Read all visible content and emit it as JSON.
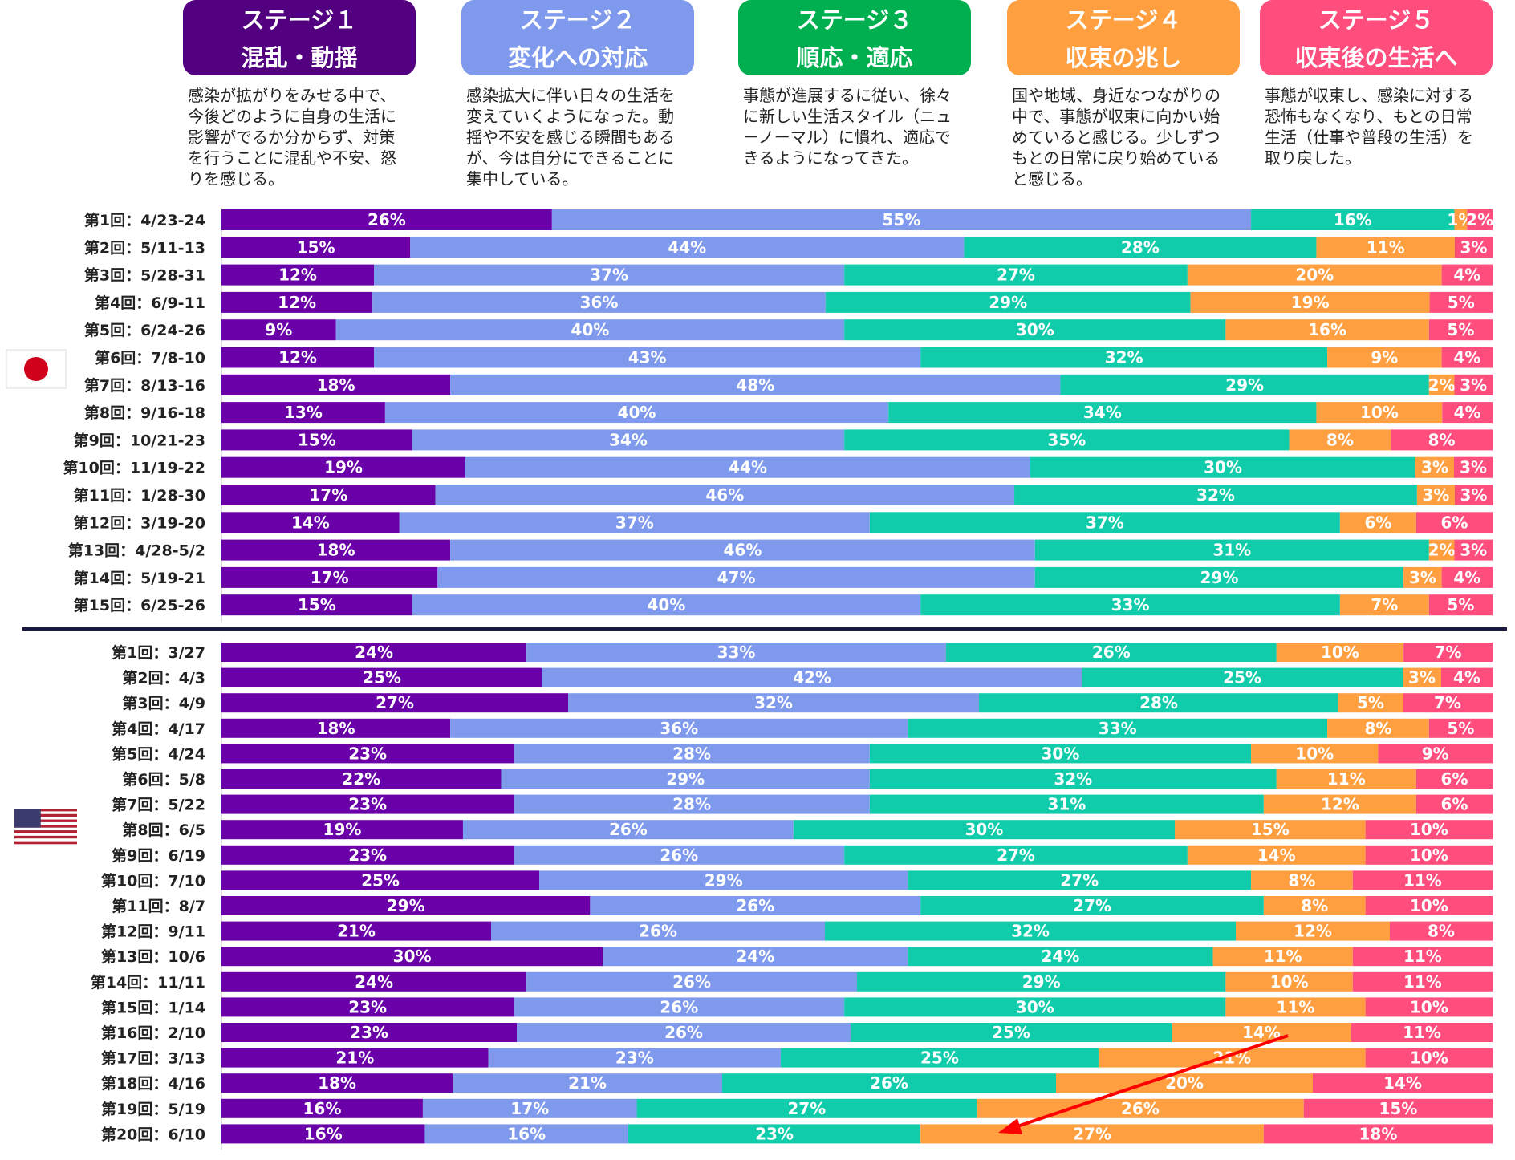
{
  "colors": [
    "#6a00a8",
    "#7f9aec",
    "#11ccaa",
    "#ff9f40",
    "#ff4d7d"
  ],
  "stages": [
    {
      "title": "ステージ１",
      "subtitle": "混乱・動揺",
      "color": "#520080",
      "desc": "感染が拡がりをみせる中で、今後どのように自身の生活に影響がでるか分からず、対策を行うことに混乱や不安、怒りを感じる。"
    },
    {
      "title": "ステージ２",
      "subtitle": "変化への対応",
      "color": "#7f9aec",
      "desc": "感染拡大に伴い日々の生活を変えていくようになった。動揺や不安を感じる瞬間もあるが、今は自分にできることに集中している。"
    },
    {
      "title": "ステージ３",
      "subtitle": "順応・適応",
      "color": "#00b050",
      "desc": "事態が進展するに従い、徐々に新しい生活スタイル（ニューノーマル）に慣れ、適応できるようになってきた。"
    },
    {
      "title": "ステージ４",
      "subtitle": "収束の兆し",
      "color": "#ff9f40",
      "desc": "国や地域、身近なつながりの中で、事態が収束に向かい始めていると感じる。少しずつもとの日常に戻り始めていると感じる。"
    },
    {
      "title": "ステージ５",
      "subtitle": "収束後の生活へ",
      "color": "#ff4d7d",
      "desc": "事態が収束し、感染に対する恐怖もなくなり、もとの日常生活（仕事や普段の生活）を取り戻した。"
    }
  ],
  "chart_data": [
    {
      "type": "bar",
      "stacked": true,
      "orientation": "horizontal",
      "percent_stacked": true,
      "flag": "japan-flag",
      "categories": [
        "第1回：4/23-24",
        "第2回：5/11-13",
        "第3回：5/28-31",
        "第4回：6/9-11",
        "第5回：6/24-26",
        "第6回：7/8-10",
        "第7回：8/13-16",
        "第8回：9/16-18",
        "第9回：10/21-23",
        "第10回：11/19-22",
        "第11回：1/28-30",
        "第12回：3/19-20",
        "第13回：4/28-5/2",
        "第14回：5/19-21",
        "第15回：6/25-26"
      ],
      "series": [
        {
          "values": [
            26,
            15,
            12,
            12,
            9,
            12,
            18,
            13,
            15,
            19,
            17,
            14,
            18,
            17,
            15
          ]
        },
        {
          "values": [
            55,
            44,
            37,
            36,
            40,
            43,
            48,
            40,
            34,
            44,
            46,
            37,
            46,
            47,
            40
          ]
        },
        {
          "values": [
            16,
            28,
            27,
            29,
            30,
            32,
            29,
            34,
            35,
            30,
            32,
            37,
            31,
            29,
            33
          ]
        },
        {
          "values": [
            1,
            11,
            20,
            19,
            16,
            9,
            2,
            10,
            8,
            3,
            3,
            6,
            2,
            3,
            7
          ]
        },
        {
          "values": [
            2,
            3,
            4,
            5,
            5,
            4,
            3,
            4,
            8,
            3,
            3,
            6,
            3,
            4,
            5
          ]
        }
      ]
    },
    {
      "type": "bar",
      "stacked": true,
      "orientation": "horizontal",
      "percent_stacked": true,
      "flag": "usa-flag",
      "categories": [
        "第1回：3/27",
        "第2回：4/3",
        "第3回：4/9",
        "第4回：4/17",
        "第5回：4/24",
        "第6回：5/8",
        "第7回：5/22",
        "第8回：6/5",
        "第9回：6/19",
        "第10回：7/10",
        "第11回：8/7",
        "第12回：9/11",
        "第13回：10/6",
        "第14回：11/11",
        "第15回：1/14",
        "第16回：2/10",
        "第17回：3/13",
        "第18回：4/16",
        "第19回：5/19",
        "第20回：6/10"
      ],
      "series": [
        {
          "values": [
            24,
            25,
            27,
            18,
            23,
            22,
            23,
            19,
            23,
            25,
            29,
            21,
            30,
            24,
            23,
            23,
            21,
            18,
            16,
            16
          ]
        },
        {
          "values": [
            33,
            42,
            32,
            36,
            28,
            29,
            28,
            26,
            26,
            29,
            26,
            26,
            24,
            26,
            26,
            26,
            23,
            21,
            17,
            16
          ]
        },
        {
          "values": [
            26,
            25,
            28,
            33,
            30,
            32,
            31,
            30,
            27,
            27,
            27,
            32,
            24,
            29,
            30,
            25,
            25,
            26,
            27,
            23
          ]
        },
        {
          "values": [
            10,
            3,
            5,
            8,
            10,
            11,
            12,
            15,
            14,
            8,
            8,
            12,
            11,
            10,
            11,
            14,
            21,
            20,
            26,
            27
          ]
        },
        {
          "values": [
            7,
            4,
            7,
            5,
            9,
            6,
            6,
            10,
            10,
            11,
            10,
            8,
            11,
            11,
            10,
            11,
            10,
            14,
            15,
            18
          ]
        }
      ],
      "annotation": "arrow"
    }
  ]
}
